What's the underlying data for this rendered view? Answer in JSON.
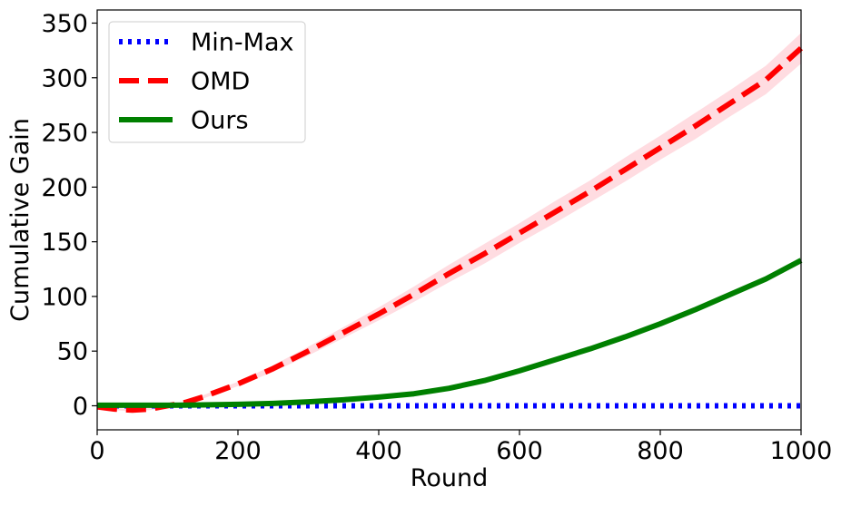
{
  "chart_data": {
    "type": "line",
    "xlabel": "Round",
    "ylabel": "Cumulative Gain",
    "xlim": [
      0,
      1000
    ],
    "ylim": [
      -22,
      362
    ],
    "xticks": [
      0,
      200,
      400,
      600,
      800,
      1000
    ],
    "xtick_labels": [
      "0",
      "200",
      "400",
      "600",
      "800",
      "1000"
    ],
    "yticks": [
      0,
      50,
      100,
      150,
      200,
      250,
      300,
      350
    ],
    "ytick_labels": [
      "0",
      "50",
      "100",
      "150",
      "200",
      "250",
      "300",
      "350"
    ],
    "grid": false,
    "legend_position": "upper-left",
    "x": [
      0,
      25,
      50,
      75,
      100,
      125,
      150,
      200,
      250,
      300,
      350,
      400,
      450,
      500,
      550,
      600,
      650,
      700,
      750,
      800,
      850,
      900,
      950,
      1000
    ],
    "series": [
      {
        "name": "Min-Max",
        "color": "#0000ff",
        "style": "dotted",
        "values": [
          0,
          0,
          0,
          0,
          0,
          0,
          0,
          0,
          0,
          0,
          0,
          0,
          0,
          0,
          0,
          0,
          0,
          0,
          0,
          0,
          0,
          0,
          0,
          0
        ],
        "band": null
      },
      {
        "name": "OMD",
        "color": "#ff0000",
        "band_color": "#ffc0c8",
        "style": "dashed",
        "values": [
          -1,
          -3,
          -4,
          -3,
          0,
          3,
          8,
          20,
          34,
          50,
          67,
          84,
          102,
          121,
          139,
          158,
          177,
          196,
          216,
          236,
          256,
          277,
          298,
          327
        ],
        "band": [
          0,
          1,
          1,
          1,
          1,
          1,
          1.5,
          2,
          3,
          4,
          5,
          6,
          7,
          8,
          9,
          9,
          10,
          10,
          11,
          11,
          12,
          12,
          13,
          14
        ]
      },
      {
        "name": "Ours",
        "color": "#008000",
        "band_color": "#b8e6b8",
        "style": "solid",
        "values": [
          0.5,
          0.5,
          0.5,
          0.5,
          0.5,
          0.6,
          0.8,
          1.3,
          2.2,
          3.6,
          5.5,
          8,
          11,
          16,
          23,
          32,
          42,
          52,
          63,
          75,
          88,
          102,
          116,
          133
        ],
        "band": [
          0.5,
          0.5,
          0.5,
          0.5,
          0.5,
          0.5,
          0.5,
          0.5,
          0.5,
          0.5,
          0.5,
          0.6,
          0.7,
          0.8,
          1,
          1.2,
          1.4,
          1.6,
          1.8,
          2,
          2.2,
          2.4,
          2.6,
          3
        ]
      }
    ]
  }
}
